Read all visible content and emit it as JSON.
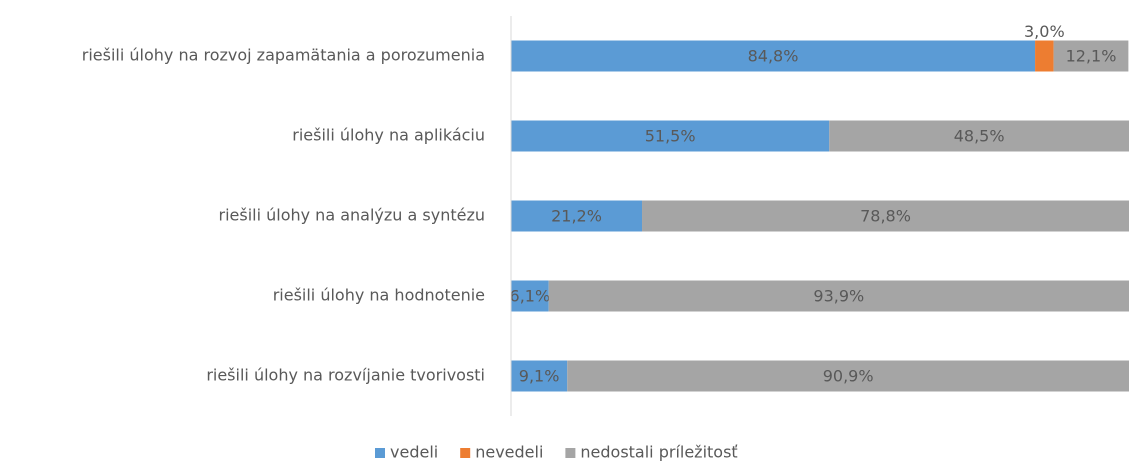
{
  "chart_data": {
    "type": "stacked-barh",
    "categories": [
      "riešili úlohy na rozvoj zapamätania a porozumenia",
      "riešili úlohy na aplikáciu",
      "riešili úlohy na analýzu a syntézu",
      "riešili úlohy na hodnotenie",
      "riešili úlohy na rozvíjanie tvorivosti"
    ],
    "series": [
      {
        "name": "vedeli",
        "color": "#5b9bd5",
        "values": [
          84.8,
          51.5,
          21.2,
          6.1,
          9.1
        ],
        "value_labels": [
          "84,8%",
          "51,5%",
          "21,2%",
          "6,1%",
          "9,1%"
        ]
      },
      {
        "name": "nevedeli",
        "color": "#ed7d31",
        "values": [
          3.0,
          null,
          null,
          null,
          null
        ],
        "value_labels": [
          "3,0%",
          null,
          null,
          null,
          null
        ]
      },
      {
        "name": "nedostali príležitosť",
        "color": "#a5a5a5",
        "values": [
          12.1,
          48.5,
          78.8,
          93.9,
          90.9
        ],
        "value_labels": [
          "12,1%",
          "48,5%",
          "78,8%",
          "93,9%",
          "90,9%"
        ]
      }
    ],
    "xlim": [
      0,
      100
    ],
    "legend": "bottom"
  }
}
